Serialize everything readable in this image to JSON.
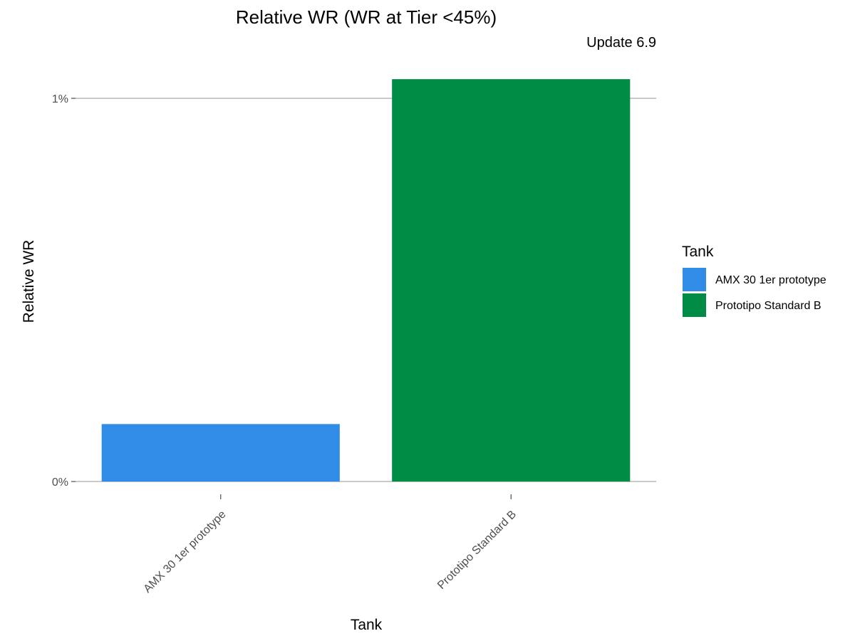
{
  "chart_data": {
    "type": "bar",
    "title": "Relative WR (WR at Tier <45%)",
    "subtitle": "Update 6.9",
    "xlabel": "Tank",
    "ylabel": "Relative WR",
    "categories": [
      "AMX 30 1er prototype",
      "Prototipo Standard B"
    ],
    "values": [
      0.15,
      1.05
    ],
    "colors": [
      "#318CE7",
      "#008C45"
    ],
    "ylim": [
      -0.05,
      1.08
    ],
    "yticks": [
      0,
      1
    ],
    "ytick_labels": [
      "0%",
      "1%"
    ],
    "grid": "horizontal major",
    "legend": {
      "title": "Tank",
      "position": "right",
      "entries": [
        "AMX 30 1er prototype",
        "Prototipo Standard B"
      ]
    }
  }
}
